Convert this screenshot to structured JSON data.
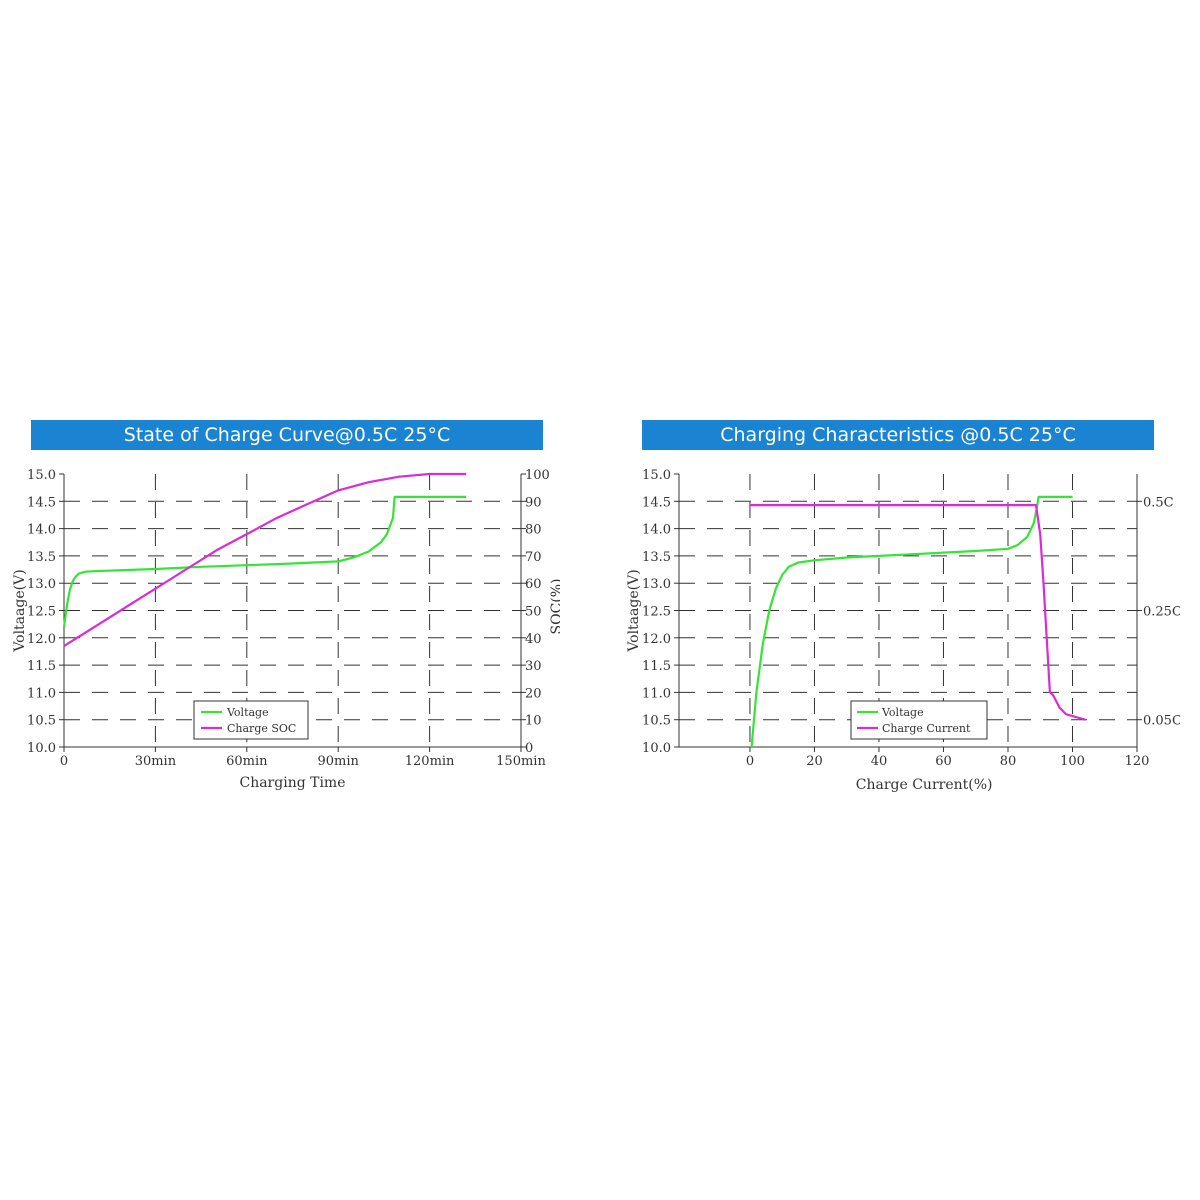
{
  "chart_data": [
    {
      "type": "line",
      "title": "State of Charge Curve@0.5C 25°C",
      "xlabel": "Charging Time",
      "ylabel": "Voltaage(V)",
      "y2label": "SOC(%)",
      "xlim": [
        0,
        150
      ],
      "ylim": [
        10.0,
        15.0
      ],
      "y2lim": [
        0,
        100
      ],
      "x_ticks": [
        "0",
        "30min",
        "60min",
        "90min",
        "120min",
        "150min"
      ],
      "y_ticks": [
        "10.0",
        "10.5",
        "11.0",
        "11.5",
        "12.0",
        "12.5",
        "13.0",
        "13.5",
        "14.0",
        "14.5",
        "15.0"
      ],
      "y2_ticks": [
        "0",
        "10",
        "20",
        "30",
        "40",
        "50",
        "60",
        "70",
        "80",
        "90",
        "100"
      ],
      "grid": true,
      "legend_position": "bottom-center",
      "series": [
        {
          "name": "Voltage",
          "axis": "left",
          "color": "#33e633",
          "x": [
            0,
            1,
            2,
            3,
            4,
            5,
            7,
            10,
            15,
            30,
            45,
            60,
            75,
            90,
            95,
            100,
            104,
            106,
            108,
            108.5,
            110,
            120,
            132
          ],
          "y": [
            12.2,
            12.6,
            12.9,
            13.05,
            13.13,
            13.18,
            13.21,
            13.22,
            13.23,
            13.26,
            13.3,
            13.33,
            13.36,
            13.4,
            13.47,
            13.58,
            13.75,
            13.9,
            14.2,
            14.58,
            14.58,
            14.58,
            14.58
          ]
        },
        {
          "name": "Charge SOC",
          "axis": "right",
          "color": "#d92bd9",
          "x": [
            0,
            10,
            20,
            30,
            40,
            50,
            60,
            70,
            80,
            90,
            100,
            110,
            120,
            132
          ],
          "y": [
            37,
            44,
            51,
            58,
            65,
            72,
            78,
            84,
            89,
            94,
            97,
            99,
            100,
            100
          ]
        }
      ]
    },
    {
      "type": "line",
      "title": "Charging Characteristics @0.5C 25°C",
      "xlabel": "Charge Current(%)",
      "ylabel": "Voltaage(V)",
      "xlim": [
        -22,
        120
      ],
      "ylim": [
        10.0,
        15.0
      ],
      "x_ticks": [
        "0",
        "20",
        "40",
        "60",
        "80",
        "100",
        "120"
      ],
      "y_ticks": [
        "10.0",
        "10.5",
        "11.0",
        "11.5",
        "12.0",
        "12.5",
        "13.0",
        "13.5",
        "14.0",
        "14.5",
        "15.0"
      ],
      "y2_ticks": [
        "0.05C",
        "0.25C",
        "0.5C"
      ],
      "grid": true,
      "legend_position": "bottom-right",
      "series": [
        {
          "name": "Voltage",
          "axis": "left",
          "color": "#33e633",
          "x": [
            0.5,
            2,
            4,
            6,
            8,
            10,
            12,
            15,
            20,
            30,
            40,
            50,
            60,
            70,
            80,
            83,
            86,
            88,
            89,
            89.5,
            92,
            100
          ],
          "y": [
            10.0,
            11.0,
            11.9,
            12.5,
            12.9,
            13.15,
            13.3,
            13.38,
            13.42,
            13.47,
            13.5,
            13.53,
            13.56,
            13.59,
            13.63,
            13.7,
            13.85,
            14.1,
            14.4,
            14.58,
            14.58,
            14.58
          ]
        },
        {
          "name": "Charge Current",
          "axis": "right",
          "color": "#d92bd9",
          "x": [
            0,
            20,
            40,
            60,
            80,
            88.7,
            90,
            91,
            92,
            93,
            94,
            96,
            98,
            101,
            104
          ],
          "y": [
            14.43,
            14.43,
            14.43,
            14.43,
            14.43,
            14.43,
            13.9,
            13.0,
            12.0,
            11.0,
            10.95,
            10.72,
            10.6,
            10.55,
            10.5
          ]
        }
      ]
    }
  ]
}
